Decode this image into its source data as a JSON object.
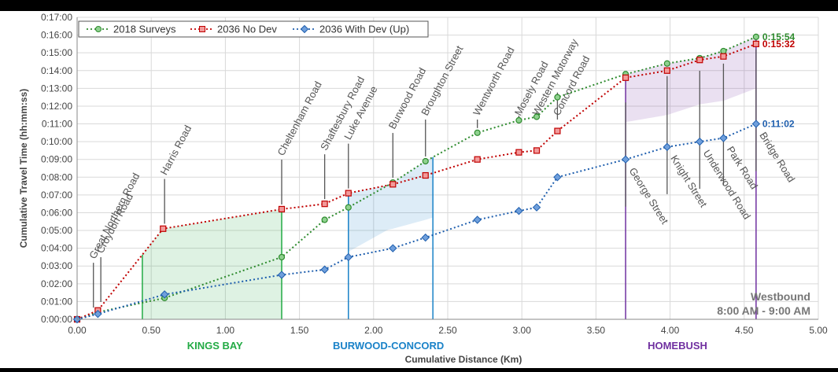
{
  "chart_data": {
    "type": "line",
    "title": "",
    "xlabel": "Cumulative Distance (Km)",
    "ylabel": "Cumulative Travel Time  (hh:mm:ss)",
    "xlim": [
      0,
      5
    ],
    "ylim": [
      0,
      17
    ],
    "x_ticks": [
      "0.00",
      "0.50",
      "1.00",
      "1.50",
      "2.00",
      "2.50",
      "3.00",
      "3.50",
      "4.00",
      "4.50",
      "5.00"
    ],
    "y_ticks": [
      "0:00:00",
      "0:01:00",
      "0:02:00",
      "0:03:00",
      "0:04:00",
      "0:05:00",
      "0:06:00",
      "0:07:00",
      "0:08:00",
      "0:09:00",
      "0:10:00",
      "0:11:00",
      "0:12:00",
      "0:13:00",
      "0:14:00",
      "0:15:00",
      "0:16:00",
      "0:17:00"
    ],
    "grid": true,
    "legend_position": "top-left",
    "series": [
      {
        "name": "2018 Surveys",
        "color": "#2e8b2e",
        "marker": "circle",
        "x": [
          0.0,
          0.14,
          0.59,
          1.38,
          1.67,
          1.83,
          2.13,
          2.35,
          2.7,
          2.98,
          3.1,
          3.24,
          3.7,
          3.98,
          4.2,
          4.36,
          4.58
        ],
        "y": [
          0.0,
          0.4,
          1.2,
          3.5,
          5.6,
          6.3,
          7.7,
          8.9,
          10.5,
          11.2,
          11.4,
          12.5,
          13.8,
          14.4,
          14.7,
          15.1,
          15.9
        ],
        "end_label": "0:15:54"
      },
      {
        "name": "2036 No Dev",
        "color": "#c00000",
        "marker": "square",
        "x": [
          0.0,
          0.14,
          0.58,
          1.38,
          1.67,
          1.83,
          2.13,
          2.35,
          2.7,
          2.98,
          3.1,
          3.24,
          3.7,
          3.98,
          4.2,
          4.36,
          4.58
        ],
        "y": [
          0.0,
          0.5,
          5.1,
          6.2,
          6.5,
          7.1,
          7.6,
          8.1,
          9.0,
          9.4,
          9.5,
          10.6,
          13.6,
          14.0,
          14.6,
          14.8,
          15.5
        ],
        "end_label": "0:15:32"
      },
      {
        "name": "2036 With Dev (Up)",
        "color": "#1f5fae",
        "marker": "diamond",
        "x": [
          0.0,
          0.14,
          0.59,
          1.38,
          1.67,
          1.83,
          2.13,
          2.35,
          2.7,
          2.98,
          3.1,
          3.24,
          3.7,
          3.98,
          4.2,
          4.36,
          4.58
        ],
        "y": [
          0.0,
          0.3,
          1.4,
          2.5,
          2.8,
          3.5,
          4.0,
          4.6,
          5.6,
          6.1,
          6.3,
          8.0,
          9.0,
          9.7,
          10.0,
          10.2,
          11.0
        ],
        "end_label": "0:11:02"
      }
    ],
    "road_labels": [
      {
        "name": "Great Northern Road",
        "x": 0.11
      },
      {
        "name": "Croydon Road",
        "x": 0.16
      },
      {
        "name": "Harris Road",
        "x": 0.59
      },
      {
        "name": "Cheltenham Road",
        "x": 1.38
      },
      {
        "name": "Shaftesbury Road",
        "x": 1.67
      },
      {
        "name": "Luke Avenue",
        "x": 1.83
      },
      {
        "name": "Burwood Road",
        "x": 2.13
      },
      {
        "name": "Broughton Street",
        "x": 2.35
      },
      {
        "name": "Wentworth Road",
        "x": 2.7
      },
      {
        "name": "Mosely Road",
        "x": 2.98
      },
      {
        "name": "Western Motorway",
        "x": 3.1
      },
      {
        "name": "Concord Road",
        "x": 3.24
      },
      {
        "name": "George Street",
        "x": 3.7
      },
      {
        "name": "Knight Street",
        "x": 3.98
      },
      {
        "name": "Underwood Road",
        "x": 4.2
      },
      {
        "name": "Park Road",
        "x": 4.36
      },
      {
        "name": "Bridge Road",
        "x": 4.58
      }
    ],
    "zones": [
      {
        "name": "KINGS BAY",
        "color": "#22aa44",
        "x_start": 0.44,
        "x_end": 1.38,
        "label_x": 0.93
      },
      {
        "name": "BURWOOD-CONCORD",
        "color": "#1a82c8",
        "x_start": 1.83,
        "x_end": 2.4,
        "label_x": 2.1
      },
      {
        "name": "HOMEBUSH",
        "color": "#7030a0",
        "x_start": 3.7,
        "x_end": 4.58,
        "label_x": 4.05
      }
    ],
    "annotation": {
      "direction": "Westbound",
      "time_period": "8:00 AM - 9:00 AM"
    }
  }
}
